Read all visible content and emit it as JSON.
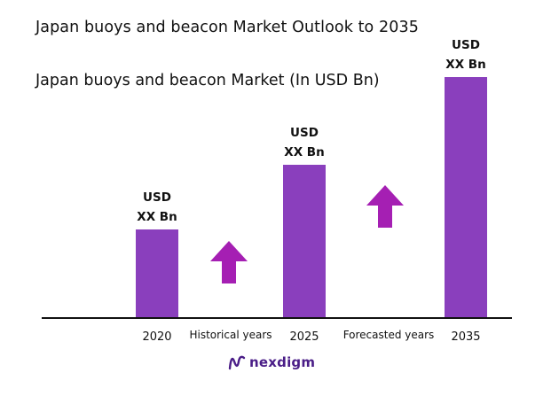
{
  "chart_data": {
    "type": "bar",
    "title": "Japan buoys and beacon Market Outlook to 2035",
    "subtitle": "Japan buoys and beacon Market (In USD Bn)",
    "categories": [
      "2020",
      "2025",
      "2035"
    ],
    "values": [
      1.0,
      1.73,
      2.72
    ],
    "value_labels": [
      [
        "USD",
        "XX Bn"
      ],
      [
        "USD",
        "XX Bn"
      ],
      [
        "USD",
        "XX Bn"
      ]
    ],
    "period_labels": [
      "Historical years",
      "Forecasted years"
    ],
    "xlabel": "",
    "ylabel": "",
    "grid": false,
    "legend": "none",
    "colors": {
      "bar": "#8a3fbd",
      "arrow": "#a51fb3",
      "axis": "#111111"
    }
  },
  "brand": {
    "name": "nexdigm",
    "logo_icon": "nexdigm-logo-icon",
    "color": "#4a1d87"
  }
}
